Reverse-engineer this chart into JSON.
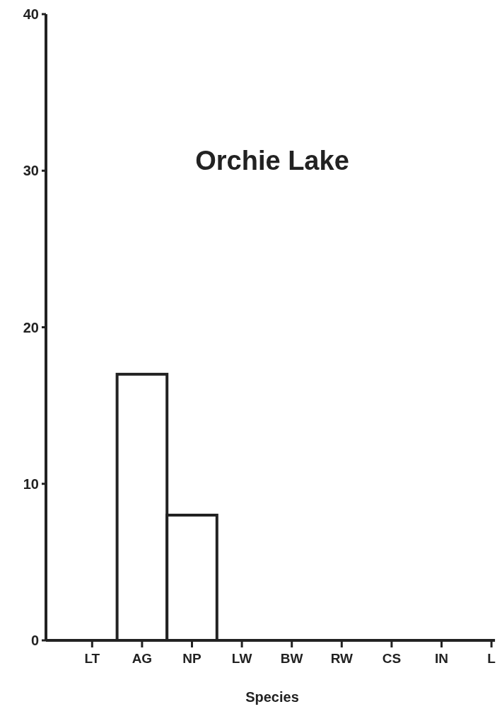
{
  "chart_data": {
    "type": "bar",
    "title": "Orchie Lake",
    "xlabel": "Species",
    "categories": [
      "LT",
      "AG",
      "NP",
      "LW",
      "BW",
      "RW",
      "CS",
      "IN",
      "L"
    ],
    "values": [
      0,
      17,
      8,
      0,
      0,
      0,
      0,
      0,
      0
    ],
    "color": "#ffffff",
    "ylim": [
      0,
      40
    ],
    "yticks": [
      0,
      10,
      20,
      30,
      40
    ],
    "grid": false
  }
}
